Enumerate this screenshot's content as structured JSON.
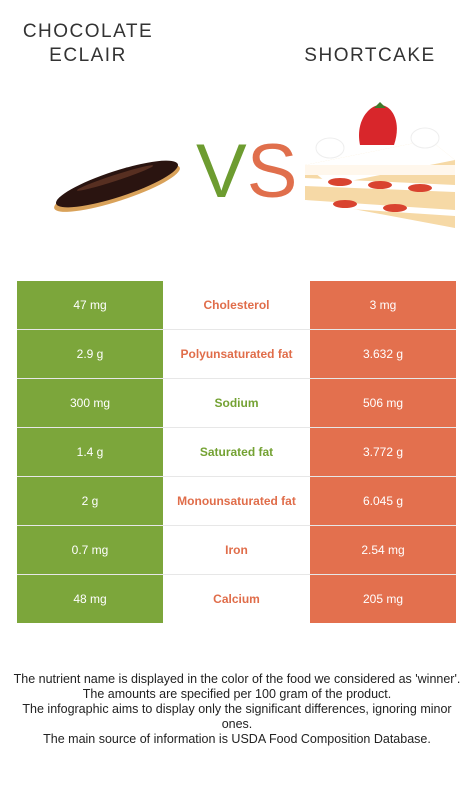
{
  "header": {
    "food_left_line1": "CHOCOLATE",
    "food_left_line2": "ECLAIR",
    "vs_v": "V",
    "vs_s": "S",
    "food_right": "SHORTCAKE"
  },
  "colors": {
    "left_food": "#7ca63b",
    "right_food": "#e3704e"
  },
  "rows": [
    {
      "left": "47 mg",
      "nutrient": "Cholesterol",
      "right": "3 mg",
      "winner": "right"
    },
    {
      "left": "2.9 g",
      "nutrient": "Polyunsaturated fat",
      "right": "3.632 g",
      "winner": "right"
    },
    {
      "left": "300 mg",
      "nutrient": "Sodium",
      "right": "506 mg",
      "winner": "left"
    },
    {
      "left": "1.4 g",
      "nutrient": "Saturated fat",
      "right": "3.772 g",
      "winner": "left"
    },
    {
      "left": "2 g",
      "nutrient": "Monounsaturated fat",
      "right": "6.045 g",
      "winner": "right"
    },
    {
      "left": "0.7 mg",
      "nutrient": "Iron",
      "right": "2.54 mg",
      "winner": "right"
    },
    {
      "left": "48 mg",
      "nutrient": "Calcium",
      "right": "205 mg",
      "winner": "right"
    }
  ],
  "footer": {
    "line1": "The nutrient name is displayed in the color of the food we considered as 'winner'.",
    "line2": "The amounts are specified per 100 gram of the product.",
    "line3": "The infographic aims to display only the significant differences, ignoring minor ones.",
    "line4": "The main source of information is USDA Food Composition Database."
  }
}
